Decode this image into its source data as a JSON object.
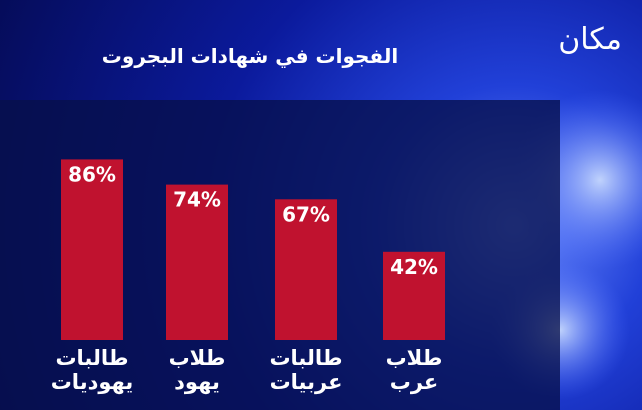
{
  "logo": "مكان",
  "chart_data": {
    "type": "bar",
    "title": "الفجوات في شهادات البجروت",
    "categories": [
      "طالبات\nيهوديات",
      "طلاب\nيهود",
      "طالبات\nعربيات",
      "طلاب\nعرب"
    ],
    "values": [
      86,
      74,
      67,
      42
    ],
    "value_labels": [
      "86%",
      "74%",
      "67%",
      "42%"
    ],
    "color": "#c0122f",
    "ylim": [
      0,
      100
    ]
  }
}
